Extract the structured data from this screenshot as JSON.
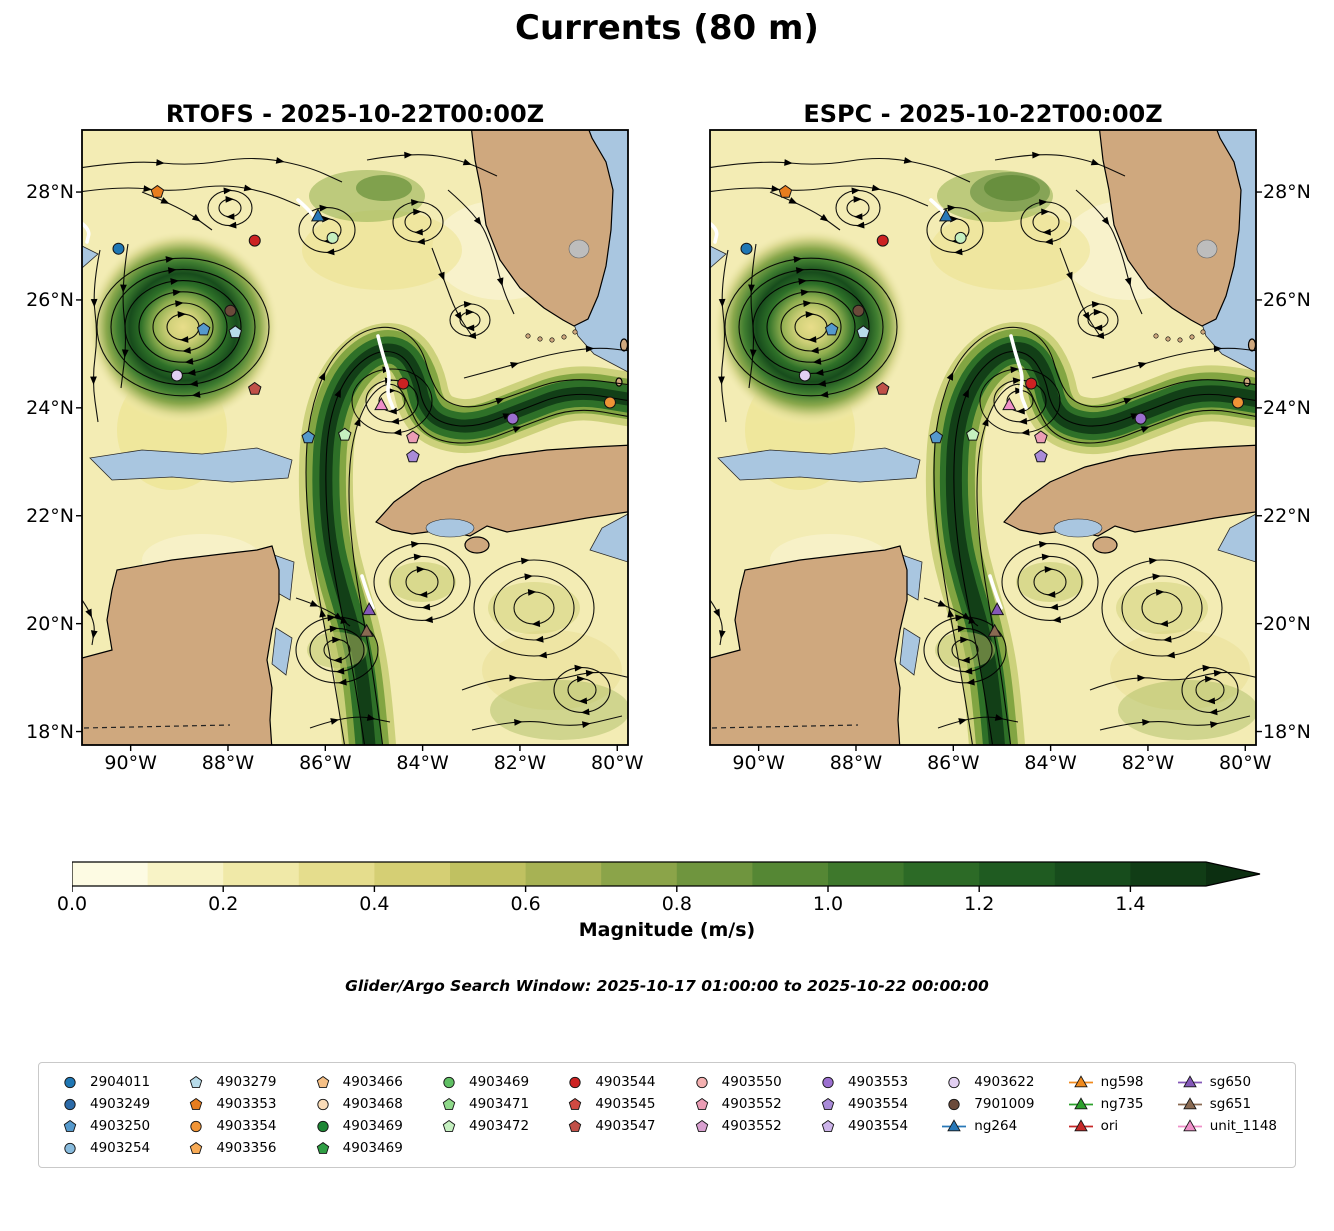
{
  "chart_data": {
    "type": "map",
    "title": "Currents (80 m)",
    "panels": [
      {
        "title": "RTOFS - 2025-10-22T00:00Z",
        "model": "RTOFS",
        "valid_time": "2025-10-22T00:00Z"
      },
      {
        "title": "ESPC - 2025-10-22T00:00Z",
        "model": "ESPC",
        "valid_time": "2025-10-22T00:00Z"
      }
    ],
    "axes": {
      "lon_range": [
        -91.0,
        -79.8
      ],
      "lat_range": [
        17.75,
        29.15
      ],
      "lon_ticks": [
        {
          "label": "90°W",
          "value": -90
        },
        {
          "label": "88°W",
          "value": -88
        },
        {
          "label": "86°W",
          "value": -86
        },
        {
          "label": "84°W",
          "value": -84
        },
        {
          "label": "82°W",
          "value": -82
        },
        {
          "label": "80°W",
          "value": -80
        }
      ],
      "lat_ticks": [
        {
          "label": "28°N",
          "value": 28
        },
        {
          "label": "26°N",
          "value": 26
        },
        {
          "label": "24°N",
          "value": 24
        },
        {
          "label": "22°N",
          "value": 22
        },
        {
          "label": "20°N",
          "value": 20
        },
        {
          "label": "18°N",
          "value": 18
        }
      ]
    },
    "colorbar": {
      "label": "Magnitude (m/s)",
      "tick_labels": [
        "0.0",
        "0.2",
        "0.4",
        "0.6",
        "0.8",
        "1.0",
        "1.2",
        "1.4"
      ],
      "tick_values": [
        0.0,
        0.2,
        0.4,
        0.6,
        0.8,
        1.0,
        1.2,
        1.4
      ],
      "vmin": 0.0,
      "vmax": 1.5,
      "extend": "max",
      "segment_colors": [
        "#fdfbe3",
        "#f8f3c6",
        "#f0e9a8",
        "#e5dd8d",
        "#d5cf74",
        "#c0c161",
        "#a7b254",
        "#8ba449",
        "#6f953e",
        "#558734",
        "#3e782c",
        "#2c6a26",
        "#1f5b21",
        "#174c1c",
        "#113d16"
      ],
      "arrow_color": "#0c2f11"
    },
    "annotation": "Glider/Argo Search Window: 2025-10-17 01:00:00 to 2025-10-22 00:00:00",
    "legend_columns": [
      [
        {
          "label": "2904011",
          "marker": "circle",
          "color": "#1f77b4"
        },
        {
          "label": "4903249",
          "marker": "circle",
          "color": "#2b6aa8"
        },
        {
          "label": "4903250",
          "marker": "pentagon",
          "color": "#5599cc"
        },
        {
          "label": "4903254",
          "marker": "circle",
          "color": "#88bbdd"
        }
      ],
      [
        {
          "label": "4903279",
          "marker": "pentagon",
          "color": "#b8dcea"
        },
        {
          "label": "4903353",
          "marker": "pentagon",
          "color": "#e87d1e"
        },
        {
          "label": "4903354",
          "marker": "circle",
          "color": "#f09436"
        },
        {
          "label": "4903356",
          "marker": "pentagon",
          "color": "#f7aa55"
        }
      ],
      [
        {
          "label": "4903466",
          "marker": "pentagon",
          "color": "#f6c086"
        },
        {
          "label": "4903468",
          "marker": "circle",
          "color": "#fadcb8"
        },
        {
          "label": "4903469",
          "marker": "circle",
          "color": "#1d8634"
        },
        {
          "label": "4903469",
          "marker": "pentagon",
          "color": "#2f9e44"
        }
      ],
      [
        {
          "label": "4903469",
          "marker": "circle",
          "color": "#5fbf63"
        },
        {
          "label": "4903471",
          "marker": "pentagon",
          "color": "#8fd98a"
        },
        {
          "label": "4903472",
          "marker": "pentagon",
          "color": "#c5f0c0"
        }
      ],
      [
        {
          "label": "4903544",
          "marker": "circle",
          "color": "#cc2222"
        },
        {
          "label": "4903545",
          "marker": "pentagon",
          "color": "#d04a42"
        },
        {
          "label": "4903547",
          "marker": "pentagon",
          "color": "#c05048"
        }
      ],
      [
        {
          "label": "4903550",
          "marker": "circle",
          "color": "#f4b0b0"
        },
        {
          "label": "4903552",
          "marker": "pentagon",
          "color": "#eb9db5"
        },
        {
          "label": "4903552",
          "marker": "pentagon",
          "color": "#d9a0d0"
        }
      ],
      [
        {
          "label": "4903553",
          "marker": "circle",
          "color": "#9b6fd0"
        },
        {
          "label": "4903554",
          "marker": "pentagon",
          "color": "#a98bd8"
        },
        {
          "label": "4903554",
          "marker": "pentagon",
          "color": "#cdb4ea"
        }
      ],
      [
        {
          "label": "4903622",
          "marker": "circle",
          "color": "#e2cff2"
        },
        {
          "label": "7901009",
          "marker": "circle",
          "color": "#6b4a3a"
        },
        {
          "label": "ng264",
          "marker": "triangle",
          "color": "#2878b8"
        }
      ],
      [
        {
          "label": "ng598",
          "marker": "triangle",
          "color": "#f08a1e"
        },
        {
          "label": "ng735",
          "marker": "triangle",
          "color": "#2ca02c"
        },
        {
          "label": "ori",
          "marker": "triangle",
          "color": "#c62828"
        }
      ],
      [
        {
          "label": "sg650",
          "marker": "triangle",
          "color": "#8458b8"
        },
        {
          "label": "sg651",
          "marker": "triangle",
          "color": "#8a6a52"
        },
        {
          "label": "unit_1148",
          "marker": "triangle",
          "color": "#ef8fc8"
        }
      ]
    ],
    "platform_markers": [
      {
        "marker": "pentagon",
        "color": "#e87d1e",
        "lon": -89.45,
        "lat": 28.0
      },
      {
        "marker": "circle",
        "color": "#1f77b4",
        "lon": -90.25,
        "lat": 26.95
      },
      {
        "marker": "triangle",
        "color": "#2878b8",
        "lon": -86.15,
        "lat": 27.55
      },
      {
        "marker": "circle",
        "color": "#cc2222",
        "lon": -87.45,
        "lat": 27.1
      },
      {
        "marker": "circle",
        "color": "#c5f0c0",
        "lon": -85.85,
        "lat": 27.15
      },
      {
        "marker": "circle",
        "color": "#6b4a3a",
        "lon": -87.95,
        "lat": 25.8
      },
      {
        "marker": "pentagon",
        "color": "#5599cc",
        "lon": -88.5,
        "lat": 25.45
      },
      {
        "marker": "pentagon",
        "color": "#b8dcea",
        "lon": -87.85,
        "lat": 25.4
      },
      {
        "marker": "circle",
        "color": "#e2cff2",
        "lon": -89.05,
        "lat": 24.6
      },
      {
        "marker": "pentagon",
        "color": "#c05048",
        "lon": -87.45,
        "lat": 24.35
      },
      {
        "marker": "triangle",
        "color": "#ef8fc8",
        "lon": -84.85,
        "lat": 24.05
      },
      {
        "marker": "circle",
        "color": "#cc2222",
        "lon": -84.4,
        "lat": 24.45
      },
      {
        "marker": "circle",
        "color": "#f09436",
        "lon": -80.15,
        "lat": 24.1
      },
      {
        "marker": "circle",
        "color": "#9b6fd0",
        "lon": -82.15,
        "lat": 23.8
      },
      {
        "marker": "pentagon",
        "color": "#5599cc",
        "lon": -86.35,
        "lat": 23.45
      },
      {
        "marker": "pentagon",
        "color": "#c5f0c0",
        "lon": -85.6,
        "lat": 23.5
      },
      {
        "marker": "pentagon",
        "color": "#eb9db5",
        "lon": -84.2,
        "lat": 23.45
      },
      {
        "marker": "pentagon",
        "color": "#a98bd8",
        "lon": -84.2,
        "lat": 23.1
      },
      {
        "marker": "triangle",
        "color": "#8458b8",
        "lon": -85.1,
        "lat": 20.25
      },
      {
        "marker": "triangle",
        "color": "#8a6a52",
        "lon": -85.15,
        "lat": 19.85
      }
    ],
    "colors": {
      "land": "#cfa87e",
      "ocean_nodata": "#a9c6e0",
      "field_base": "#f3ecb4",
      "streamline": "#000000",
      "glider_track": "#ffffff",
      "lake": "#bdbdbd"
    }
  }
}
